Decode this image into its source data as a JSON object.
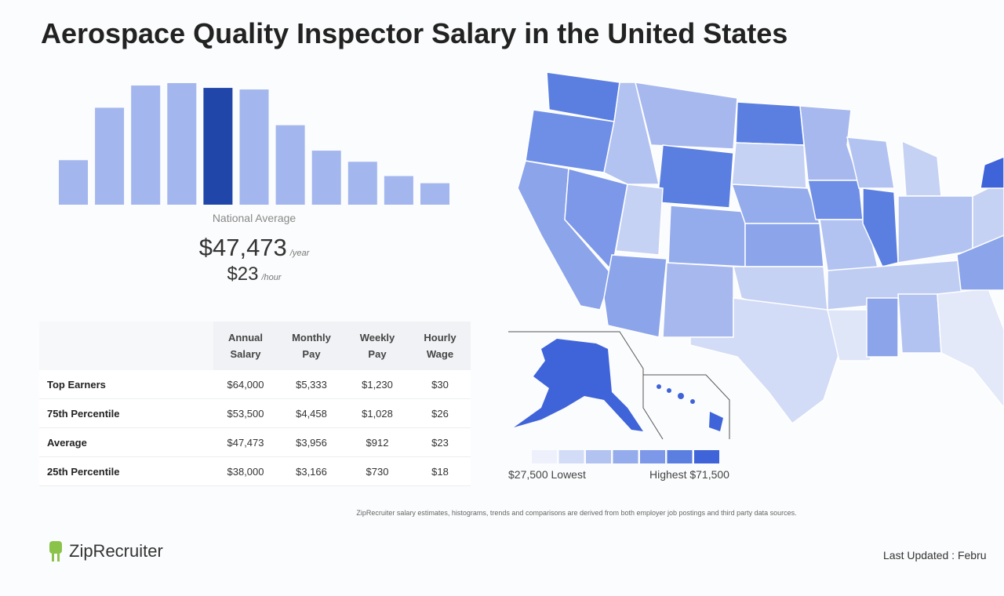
{
  "title": "Aerospace Quality Inspector Salary in the United States",
  "chart_data": {
    "type": "bar",
    "values": [
      56,
      122,
      150,
      153,
      147,
      145,
      100,
      68,
      54,
      36,
      27
    ],
    "colors": [
      "#a3b6ee",
      "#a3b6ee",
      "#a3b6ee",
      "#a3b6ee",
      "#1f46a8",
      "#a3b6ee",
      "#a3b6ee",
      "#a3b6ee",
      "#a3b6ee",
      "#a3b6ee",
      "#a3b6ee"
    ]
  },
  "national_average": {
    "label": "National Average",
    "annual": "$47,473",
    "annual_unit": "/year",
    "hourly": "$23",
    "hourly_unit": "/hour"
  },
  "table": {
    "header": [
      "",
      "Annual Salary",
      "Monthly Pay",
      "Weekly Pay",
      "Hourly Wage"
    ],
    "rows": [
      [
        "Top Earners",
        "$64,000",
        "$5,333",
        "$1,230",
        "$30"
      ],
      [
        "75th Percentile",
        "$53,500",
        "$4,458",
        "$1,028",
        "$26"
      ],
      [
        "Average",
        "$47,473",
        "$3,956",
        "$912",
        "$23"
      ],
      [
        "25th Percentile",
        "$38,000",
        "$3,166",
        "$730",
        "$18"
      ]
    ]
  },
  "map_legend": {
    "colors": [
      "#eef1fb",
      "#d3dcf6",
      "#b3c3f1",
      "#95acec",
      "#7d98e8",
      "#5b7fe0",
      "#3f63d8"
    ],
    "low_label": "$27,500 Lowest",
    "high_label": "Highest $71,500"
  },
  "footnote": "ZipRecruiter salary estimates, histograms, trends and comparisons are derived from both employer job postings and third party data sources.",
  "logo": "ZipRecruiter",
  "last_updated": "Last Updated : Febru"
}
